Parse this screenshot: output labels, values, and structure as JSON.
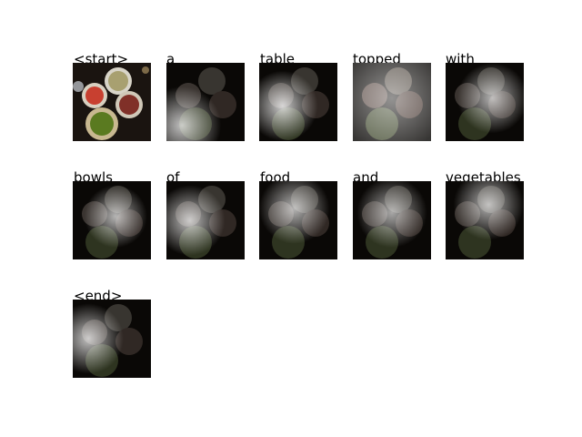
{
  "tokens": [
    {
      "word": "<start>",
      "attention": "none"
    },
    {
      "word": "a",
      "attention": "lower-left"
    },
    {
      "word": "table",
      "attention": "left-center"
    },
    {
      "word": "topped",
      "attention": "diffuse"
    },
    {
      "word": "with",
      "attention": "center-right"
    },
    {
      "word": "bowls",
      "attention": "center"
    },
    {
      "word": "of",
      "attention": "left-center"
    },
    {
      "word": "food",
      "attention": "center-top"
    },
    {
      "word": "and",
      "attention": "center"
    },
    {
      "word": "vegetables",
      "attention": "top"
    },
    {
      "word": "<end>",
      "attention": "left"
    }
  ]
}
